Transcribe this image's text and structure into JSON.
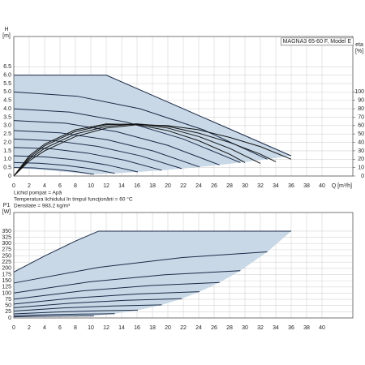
{
  "chart_data": [
    {
      "type": "line",
      "title": "MAGNA3 65-60 F, Model E",
      "ylabel": "H",
      "yunit": "[m]",
      "y2label": "eta",
      "y2unit": "[%]",
      "xlabel": "Q [m³/h]",
      "notes": [
        "Lichid pompat = Apă",
        "Temperatura lichidului în timpul funcţionării = 60 °C",
        "Densitate = 983.2 kg/m³"
      ],
      "xlim": [
        0,
        44
      ],
      "xticks": [
        0,
        2,
        4,
        6,
        8,
        10,
        12,
        14,
        16,
        18,
        20,
        22,
        24,
        26,
        28,
        30,
        32,
        34,
        36,
        38,
        40
      ],
      "ylim": [
        0,
        8.3
      ],
      "yticks": [
        0,
        0.5,
        {
          "value": 1.0,
          "label": "1.0"
        },
        1.5,
        {
          "value": 2.0,
          "label": "2.0"
        },
        2.5,
        {
          "value": 3.0,
          "label": "3.0"
        },
        3.5,
        {
          "value": 4.0,
          "label": "4.0"
        },
        4.5,
        {
          "value": 5.0,
          "label": "5.0"
        },
        5.5,
        {
          "value": 6.0,
          "label": "6.0"
        },
        6.5
      ],
      "y2lim": [
        0,
        166
      ],
      "y2ticks": [
        0,
        10,
        20,
        30,
        40,
        50,
        60,
        70,
        80,
        90,
        100
      ],
      "grid": true,
      "area_color": "#c8d8e6",
      "series": [
        {
          "color": "#1b2a48",
          "x": [
            0,
            12,
            18,
            24,
            30,
            36
          ],
          "values": [
            6.0,
            6.0,
            4.8,
            3.6,
            2.4,
            1.2
          ]
        },
        {
          "color": "#1b2a48",
          "x": [
            0,
            8.2,
            16.4,
            24.6,
            32.9
          ],
          "values": [
            5.0,
            4.75,
            4.0,
            2.75,
            1.0
          ]
        },
        {
          "color": "#1b2a48",
          "x": [
            0,
            7.35,
            14.7,
            22.0,
            29.4
          ],
          "values": [
            4.0,
            3.8,
            3.2,
            2.2,
            0.8
          ]
        },
        {
          "color": "#1b2a48",
          "x": [
            0,
            6.7,
            13.3,
            20.0,
            26.7
          ],
          "values": [
            3.3,
            3.14,
            2.64,
            1.82,
            0.66
          ]
        },
        {
          "color": "#1b2a48",
          "x": [
            0,
            6.0,
            12.1,
            18.1,
            24.1
          ],
          "values": [
            2.7,
            2.57,
            2.16,
            1.49,
            0.54
          ]
        },
        {
          "color": "#1b2a48",
          "x": [
            0,
            5.45,
            10.9,
            16.35,
            21.8
          ],
          "values": [
            2.2,
            2.09,
            1.76,
            1.21,
            0.44
          ]
        },
        {
          "color": "#1b2a48",
          "x": [
            0,
            4.8,
            9.6,
            14.4,
            19.2
          ],
          "values": [
            1.7,
            1.62,
            1.36,
            0.94,
            0.34
          ]
        },
        {
          "color": "#1b2a48",
          "x": [
            0,
            4.0,
            8.05,
            12.1,
            16.1
          ],
          "values": [
            1.2,
            1.14,
            0.96,
            0.66,
            0.24
          ]
        },
        {
          "color": "#1b2a48",
          "x": [
            0,
            3.3,
            6.6,
            9.9,
            13.1
          ],
          "values": [
            0.8,
            0.76,
            0.64,
            0.44,
            0.16
          ]
        },
        {
          "color": "#1b2a48",
          "x": [
            0,
            2.6,
            5.2,
            7.8,
            10.4
          ],
          "values": [
            0.5,
            0.48,
            0.4,
            0.28,
            0.1
          ]
        },
        {
          "color": "#111111",
          "axis": "y2",
          "x": [
            0,
            2,
            4,
            8,
            12,
            16,
            20,
            24,
            28,
            32,
            36
          ],
          "values": [
            0,
            18,
            30,
            47,
            57,
            61,
            60,
            55,
            46,
            35,
            20
          ]
        },
        {
          "color": "#111111",
          "axis": "y2",
          "x": [
            0,
            2,
            4,
            8,
            12,
            16,
            20,
            24,
            28,
            32,
            34
          ],
          "values": [
            0,
            20,
            33,
            50,
            59,
            62,
            59,
            51,
            40,
            26,
            17
          ]
        },
        {
          "color": "#111111",
          "axis": "y2",
          "x": [
            0,
            2,
            4,
            8,
            12,
            16,
            20,
            24,
            28,
            32
          ],
          "values": [
            0,
            22,
            36,
            53,
            61,
            62,
            57,
            47,
            33,
            15
          ]
        },
        {
          "color": "#111111",
          "axis": "y2",
          "x": [
            0,
            2,
            4,
            8,
            12,
            16,
            20,
            24,
            28,
            30
          ],
          "values": [
            0,
            24,
            38,
            55,
            62,
            61,
            54,
            42,
            26,
            16
          ]
        }
      ]
    },
    {
      "type": "line",
      "ylabel": "P1",
      "yunit": "[W]",
      "xlim": [
        0,
        44
      ],
      "xticks": [
        0,
        2,
        4,
        6,
        8,
        10,
        12,
        14,
        16,
        18,
        20,
        22,
        24,
        26,
        28,
        30,
        32,
        34,
        36,
        38,
        40
      ],
      "ylim": [
        0,
        425
      ],
      "yticks": [
        0,
        25,
        50,
        75,
        100,
        125,
        150,
        175,
        200,
        225,
        250,
        275,
        300,
        325,
        350
      ],
      "grid": true,
      "area_color": "#c8d8e6",
      "series": [
        {
          "color": "#1b2a48",
          "x": [
            0,
            4,
            8,
            11,
            36
          ],
          "values": [
            185,
            250,
            310,
            350,
            350
          ]
        },
        {
          "color": "#1b2a48",
          "x": [
            0,
            10.95,
            21.9,
            32.9
          ],
          "values": [
            140.8,
            203.6,
            243.7,
            266.4
          ]
        },
        {
          "color": "#1b2a48",
          "x": [
            0,
            9.8,
            19.6,
            29.4
          ],
          "values": [
            100.6,
            145.5,
            174.2,
            190.4
          ]
        },
        {
          "color": "#1b2a48",
          "x": [
            0,
            8.9,
            17.8,
            26.7
          ],
          "values": [
            75.6,
            109.2,
            130.8,
            142.9
          ]
        },
        {
          "color": "#1b2a48",
          "x": [
            0,
            8.0,
            16.1,
            24.1
          ],
          "values": [
            55.9,
            80.8,
            96.7,
            105.7
          ]
        },
        {
          "color": "#1b2a48",
          "x": [
            0,
            7.3,
            14.5,
            21.8
          ],
          "values": [
            41.1,
            59.4,
            71.1,
            77.7
          ]
        },
        {
          "color": "#1b2a48",
          "x": [
            0,
            6.4,
            12.8,
            19.2
          ],
          "values": [
            27.9,
            40.3,
            48.3,
            52.8
          ]
        },
        {
          "color": "#1b2a48",
          "x": [
            0,
            5.4,
            10.7,
            16.1
          ],
          "values": [
            16.5,
            23.9,
            28.6,
            31.3
          ]
        },
        {
          "color": "#1b2a48",
          "x": [
            0,
            4.4,
            8.7,
            13.1
          ],
          "values": [
            9.0,
            13.0,
            15.6,
            17.0
          ]
        },
        {
          "color": "#1b2a48",
          "x": [
            0,
            3.5,
            6.9,
            10.4
          ],
          "values": [
            4.5,
            6.4,
            7.7,
            8.4
          ]
        }
      ]
    }
  ]
}
